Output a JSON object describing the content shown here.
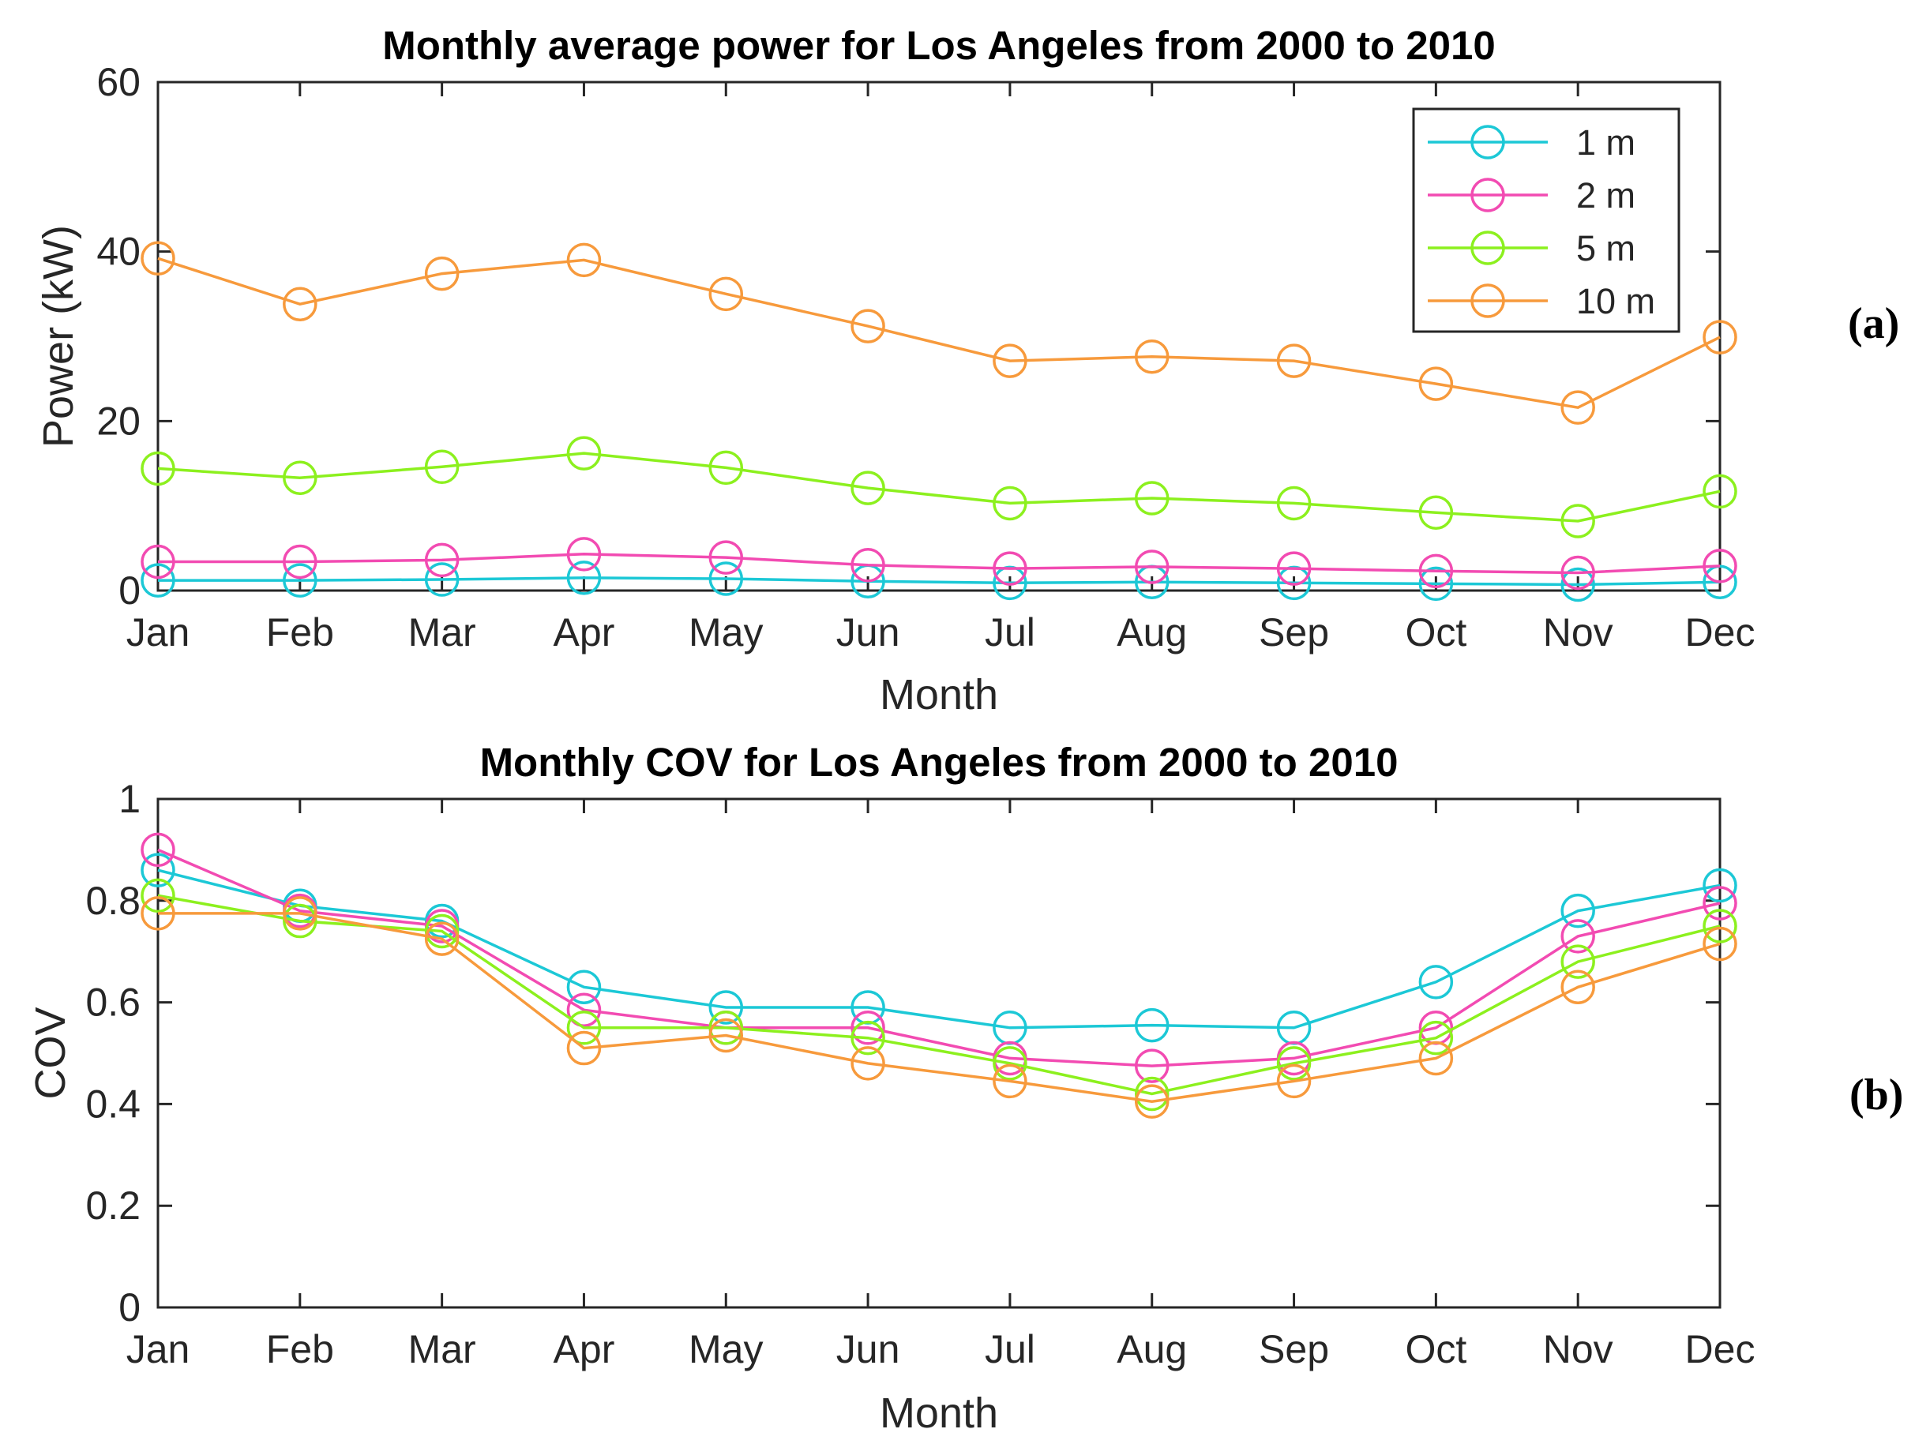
{
  "chart_data": [
    {
      "type": "line",
      "panel": "(a)",
      "title": "Monthly average power for Los Angeles from 2000 to 2010",
      "xlabel": "Month",
      "ylabel": "Power (kW)",
      "categories": [
        "Jan",
        "Feb",
        "Mar",
        "Apr",
        "May",
        "Jun",
        "Jul",
        "Aug",
        "Sep",
        "Oct",
        "Nov",
        "Dec"
      ],
      "ylim": [
        0,
        60
      ],
      "yticks": [
        0,
        20,
        40,
        60
      ],
      "grid": false,
      "legend_position": "top-right",
      "marker": "circle",
      "series": [
        {
          "name": "1 m",
          "color": "#1cc8d6",
          "values": [
            1.2,
            1.2,
            1.3,
            1.5,
            1.4,
            1.1,
            0.9,
            1.0,
            0.9,
            0.8,
            0.7,
            1.0
          ]
        },
        {
          "name": "2 m",
          "color": "#f24bb2",
          "values": [
            3.4,
            3.4,
            3.6,
            4.3,
            3.9,
            3.0,
            2.6,
            2.8,
            2.6,
            2.3,
            2.1,
            2.9
          ]
        },
        {
          "name": "5 m",
          "color": "#8cf01e",
          "values": [
            14.4,
            13.3,
            14.6,
            16.2,
            14.5,
            12.1,
            10.3,
            10.9,
            10.3,
            9.2,
            8.2,
            11.7
          ]
        },
        {
          "name": "10 m",
          "color": "#f79a3c",
          "values": [
            39.2,
            33.8,
            37.4,
            39.0,
            35.0,
            31.2,
            27.1,
            27.6,
            27.1,
            24.4,
            21.6,
            29.9
          ]
        }
      ]
    },
    {
      "type": "line",
      "panel": "(b)",
      "title": "Monthly COV for Los Angeles from 2000 to 2010",
      "xlabel": "Month",
      "ylabel": "COV",
      "categories": [
        "Jan",
        "Feb",
        "Mar",
        "Apr",
        "May",
        "Jun",
        "Jul",
        "Aug",
        "Sep",
        "Oct",
        "Nov",
        "Dec"
      ],
      "ylim": [
        0,
        1
      ],
      "yticks": [
        0,
        0.2,
        0.4,
        0.6,
        0.8,
        1
      ],
      "grid": false,
      "marker": "circle",
      "series": [
        {
          "name": "1 m",
          "color": "#1cc8d6",
          "values": [
            0.86,
            0.79,
            0.76,
            0.63,
            0.59,
            0.59,
            0.55,
            0.555,
            0.55,
            0.64,
            0.78,
            0.83
          ]
        },
        {
          "name": "2 m",
          "color": "#f24bb2",
          "values": [
            0.9,
            0.78,
            0.75,
            0.585,
            0.55,
            0.55,
            0.49,
            0.475,
            0.49,
            0.55,
            0.73,
            0.795
          ]
        },
        {
          "name": "5 m",
          "color": "#8cf01e",
          "values": [
            0.81,
            0.76,
            0.74,
            0.55,
            0.55,
            0.53,
            0.48,
            0.42,
            0.48,
            0.53,
            0.68,
            0.75
          ]
        },
        {
          "name": "10 m",
          "color": "#f79a3c",
          "values": [
            0.775,
            0.775,
            0.725,
            0.51,
            0.535,
            0.48,
            0.445,
            0.405,
            0.445,
            0.49,
            0.63,
            0.715
          ]
        }
      ]
    }
  ]
}
